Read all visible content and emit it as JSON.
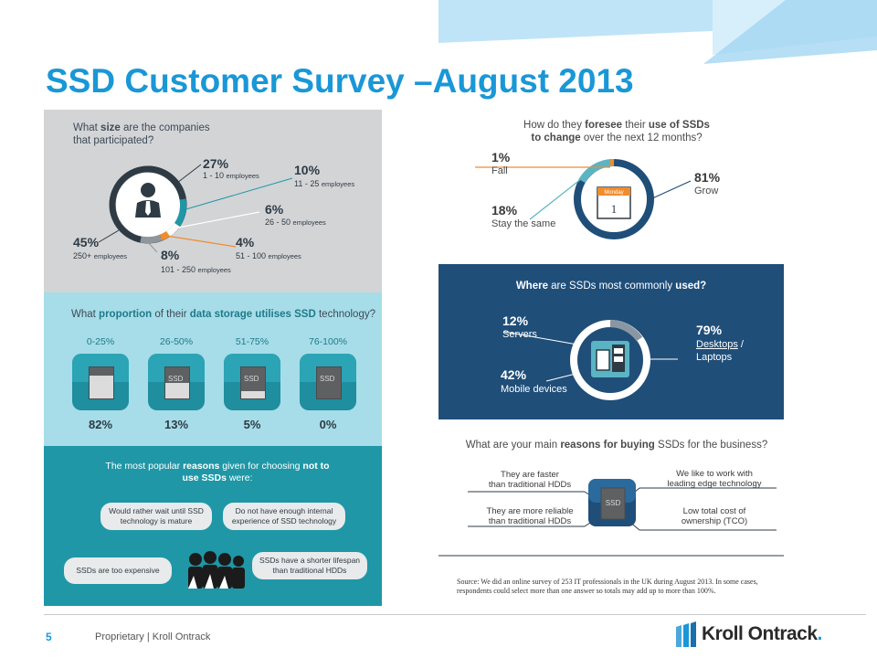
{
  "title": "SSD Customer Survey –August 2013",
  "colors": {
    "accent": "#1a97d6",
    "navy": "#1f4e79",
    "teal": "#1f97a6",
    "lightblue": "#a6dde8",
    "orange": "#f08c2e"
  },
  "company_size": {
    "question_plain": "What ",
    "question_bold": "size",
    "question_rest": " are the companies that participated?",
    "segments": [
      {
        "pct": "27%",
        "label": "1 - 10 ",
        "unit": "employees"
      },
      {
        "pct": "10%",
        "label": "11 - 25 ",
        "unit": "employees"
      },
      {
        "pct": "6%",
        "label": "26 - 50 ",
        "unit": "employees"
      },
      {
        "pct": "4%",
        "label": "51 - 100 ",
        "unit": "employees"
      },
      {
        "pct": "8%",
        "label": "101 - 250 ",
        "unit": "employees"
      },
      {
        "pct": "45%",
        "label": "250+ ",
        "unit": "employees"
      }
    ]
  },
  "proportion": {
    "q1": "What ",
    "q2": "proportion",
    "q3": " of their ",
    "q4": "data storage utilises SSD",
    "q5": " technology?",
    "drive_label": "SSD",
    "items": [
      {
        "range": "0-25%",
        "pct": "82%",
        "value": 0.25
      },
      {
        "range": "26-50%",
        "pct": "13%",
        "value": 0.5
      },
      {
        "range": "51-75%",
        "pct": "5%",
        "value": 0.75
      },
      {
        "range": "76-100%",
        "pct": "0%",
        "value": 1.0
      }
    ]
  },
  "reasons_not": {
    "heading_1": "The most popular ",
    "heading_bold": "reasons",
    "heading_2": " given for choosing ",
    "heading_bold2": "not to use SSDs",
    "heading_3": " were:",
    "bubbles": [
      "Would rather wait until SSD technology is mature",
      "Do not have enough internal experience of SSD technology",
      "SSDs are too expensive",
      "SSDs have a shorter lifespan than traditional HDDs"
    ]
  },
  "foresee": {
    "q1": "How do they ",
    "q2": "foresee",
    "q3": " their ",
    "q4": "use of SSDs",
    "q5": "to change",
    "q6": " over the next 12 months?",
    "calendar_month": "Monday",
    "calendar_day": "1",
    "items": [
      {
        "pct": "1%",
        "label": "Fall"
      },
      {
        "pct": "18%",
        "label": "Stay the same"
      },
      {
        "pct": "81%",
        "label": "Grow"
      }
    ]
  },
  "where": {
    "q1": "Where",
    "q2": " are SSDs most commonly ",
    "q3": "used?",
    "items": [
      {
        "pct": "12%",
        "label": "Servers"
      },
      {
        "pct": "42%",
        "label": "Mobile devices"
      },
      {
        "pct": "79%",
        "label": "Desktops",
        "label2": " /",
        "label3": "Laptops"
      }
    ]
  },
  "reasons_buy": {
    "q1": "What are your main ",
    "q2": "reasons for buying",
    "q3": " SSDs for the business?",
    "center_label": "SSD",
    "items": [
      {
        "line1": "They are faster",
        "line2": "than traditional HDDs"
      },
      {
        "line1": "They are more reliable",
        "line2": "than traditional HDDs"
      },
      {
        "line1": "We like to work with",
        "line2": "leading edge technology"
      },
      {
        "line1": "Low total cost of",
        "line2": "ownership (TCO)"
      }
    ]
  },
  "source": "Source: We did an online survey of 253 IT professionals in the UK during August 2013. In some cases, respondents could select more than one answer so totals may add up to more than 100%.",
  "footer": {
    "page": "5",
    "proprietary": "Proprietary | Kroll Ontrack",
    "logo": "Kroll Ontrack",
    "logo_mark": "."
  }
}
